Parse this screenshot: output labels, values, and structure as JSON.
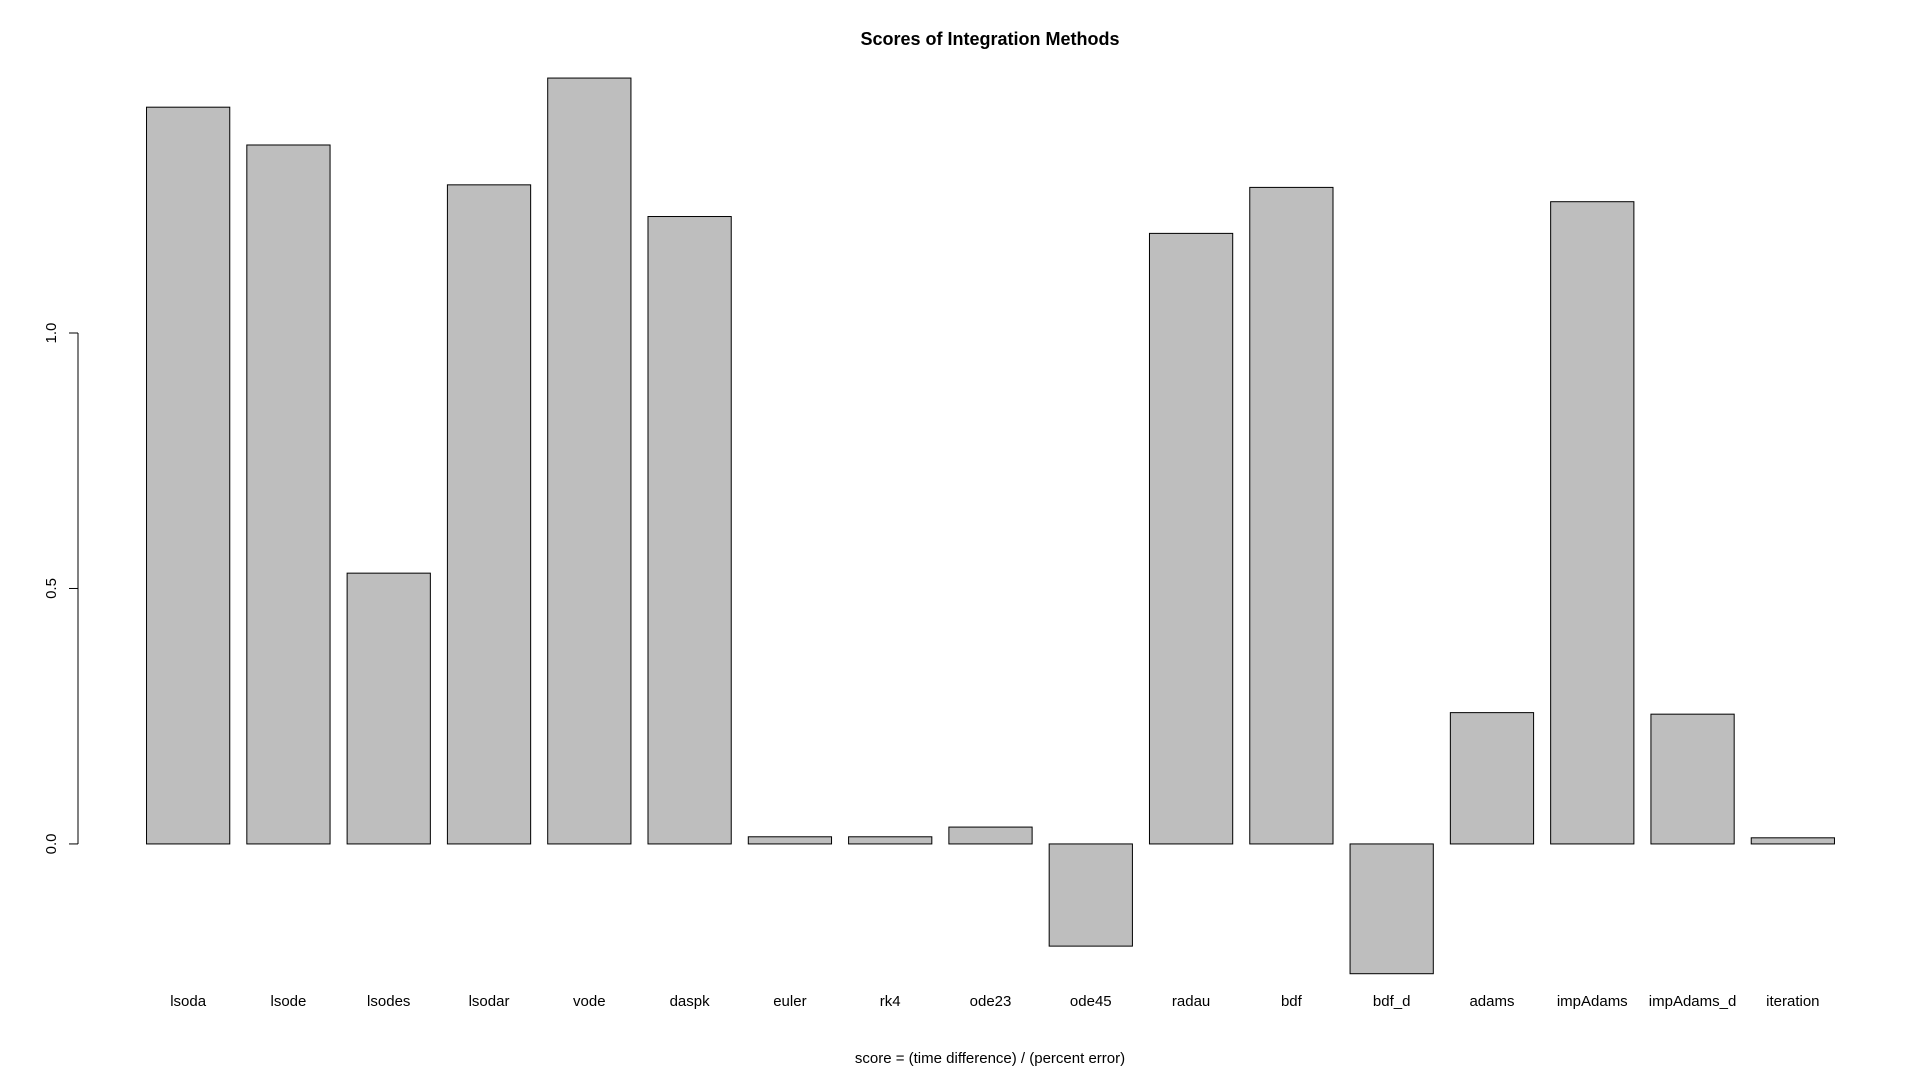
{
  "chart_data": {
    "type": "bar",
    "title": "Scores of Integration Methods",
    "x_label": "score = (time difference) / (percent error)",
    "categories": [
      "lsoda",
      "lsode",
      "lsodes",
      "lsodar",
      "vode",
      "daspk",
      "euler",
      "rk4",
      "ode23",
      "ode45",
      "radau",
      "bdf",
      "bdf_d",
      "adams",
      "impAdams",
      "impAdams_d",
      "iteration"
    ],
    "values": [
      1.442,
      1.368,
      0.53,
      1.29,
      1.499,
      1.228,
      0.014,
      0.014,
      0.033,
      -0.2,
      1.195,
      1.285,
      -0.254,
      0.257,
      1.257,
      0.254,
      0.012
    ],
    "color": "#bebebe",
    "ylim": [
      -0.28,
      1.55
    ],
    "yticks": [
      {
        "value": 0,
        "label": "0.0"
      },
      0.5,
      {
        "value": 1,
        "label": "1.0"
      }
    ],
    "grid": false
  }
}
